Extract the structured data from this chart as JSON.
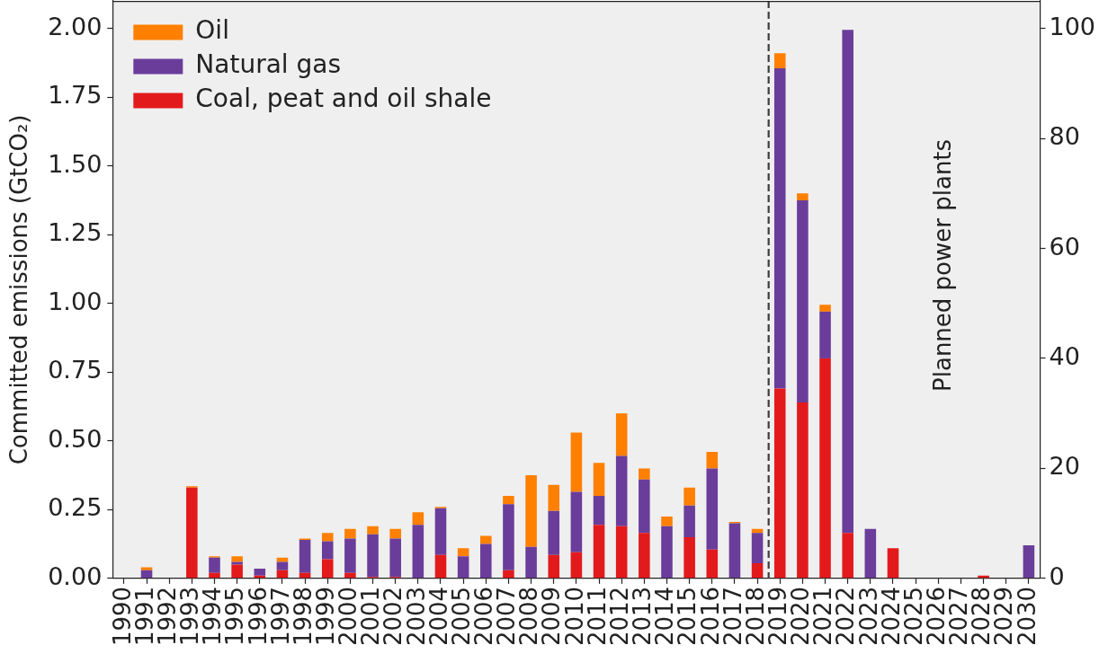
{
  "chart_data": {
    "type": "bar",
    "stacked": true,
    "ylabel": "Committed emissions (GtCO₂)",
    "annotations": [
      "Planned power plants"
    ],
    "categories": [
      "1990",
      "1991",
      "1992",
      "1993",
      "1994",
      "1995",
      "1996",
      "1997",
      "1998",
      "1999",
      "2000",
      "2001",
      "2002",
      "2003",
      "2004",
      "2005",
      "2006",
      "2007",
      "2008",
      "2009",
      "2010",
      "2011",
      "2012",
      "2013",
      "2014",
      "2015",
      "2016",
      "2017",
      "2018",
      "2019",
      "2020",
      "2021",
      "2022",
      "2023",
      "2024",
      "2025",
      "2026",
      "2027",
      "2028",
      "2029",
      "2030"
    ],
    "ylim": [
      0,
      2.1
    ],
    "yticks": [
      {
        "value": 0,
        "label": "0.00"
      },
      0.25,
      {
        "value": 0.5,
        "label": "0.50"
      },
      0.75,
      {
        "value": 1,
        "label": "1.00"
      },
      1.25,
      {
        "value": 1.5,
        "label": "1.50"
      },
      1.75,
      {
        "value": 2,
        "label": "2.00"
      }
    ],
    "y2lim": [
      0,
      105
    ],
    "y2ticks": [
      0,
      20,
      40,
      60,
      80,
      100
    ],
    "series": [
      {
        "name": "Coal, peat and oil shale",
        "color": "#e31a1c",
        "values": [
          0,
          0,
          0,
          0.33,
          0.02,
          0.05,
          0.01,
          0.03,
          0.02,
          0.07,
          0.02,
          0.005,
          0.005,
          0,
          0.085,
          0,
          0,
          0.03,
          0,
          0.085,
          0.095,
          0.195,
          0.19,
          0.165,
          0,
          0.15,
          0.105,
          0,
          0.055,
          0.69,
          0.64,
          0.8,
          0.165,
          0,
          0.11,
          0,
          0,
          0,
          0.01,
          0,
          0
        ]
      },
      {
        "name": "Natural gas",
        "color": "#6a3d9a",
        "values": [
          0,
          0.03,
          0,
          0,
          0.055,
          0.01,
          0.025,
          0.03,
          0.12,
          0.065,
          0.125,
          0.155,
          0.14,
          0.195,
          0.17,
          0.08,
          0.125,
          0.24,
          0.115,
          0.16,
          0.22,
          0.105,
          0.255,
          0.195,
          0.19,
          0.115,
          0.295,
          0.2,
          0.11,
          1.165,
          0.735,
          0.17,
          1.83,
          0.18,
          0,
          0,
          0,
          0,
          0,
          0,
          0.12
        ]
      },
      {
        "name": "Oil",
        "color": "#ff7f00",
        "values": [
          0,
          0.01,
          0,
          0.005,
          0.005,
          0.02,
          0,
          0.015,
          0.005,
          0.03,
          0.035,
          0.03,
          0.035,
          0.045,
          0.005,
          0.03,
          0.03,
          0.03,
          0.26,
          0.095,
          0.215,
          0.12,
          0.155,
          0.04,
          0.035,
          0.065,
          0.06,
          0.005,
          0.015,
          0.055,
          0.025,
          0.025,
          0,
          0,
          0,
          0,
          0,
          0,
          0,
          0,
          0
        ]
      }
    ],
    "legend": "top left"
  }
}
